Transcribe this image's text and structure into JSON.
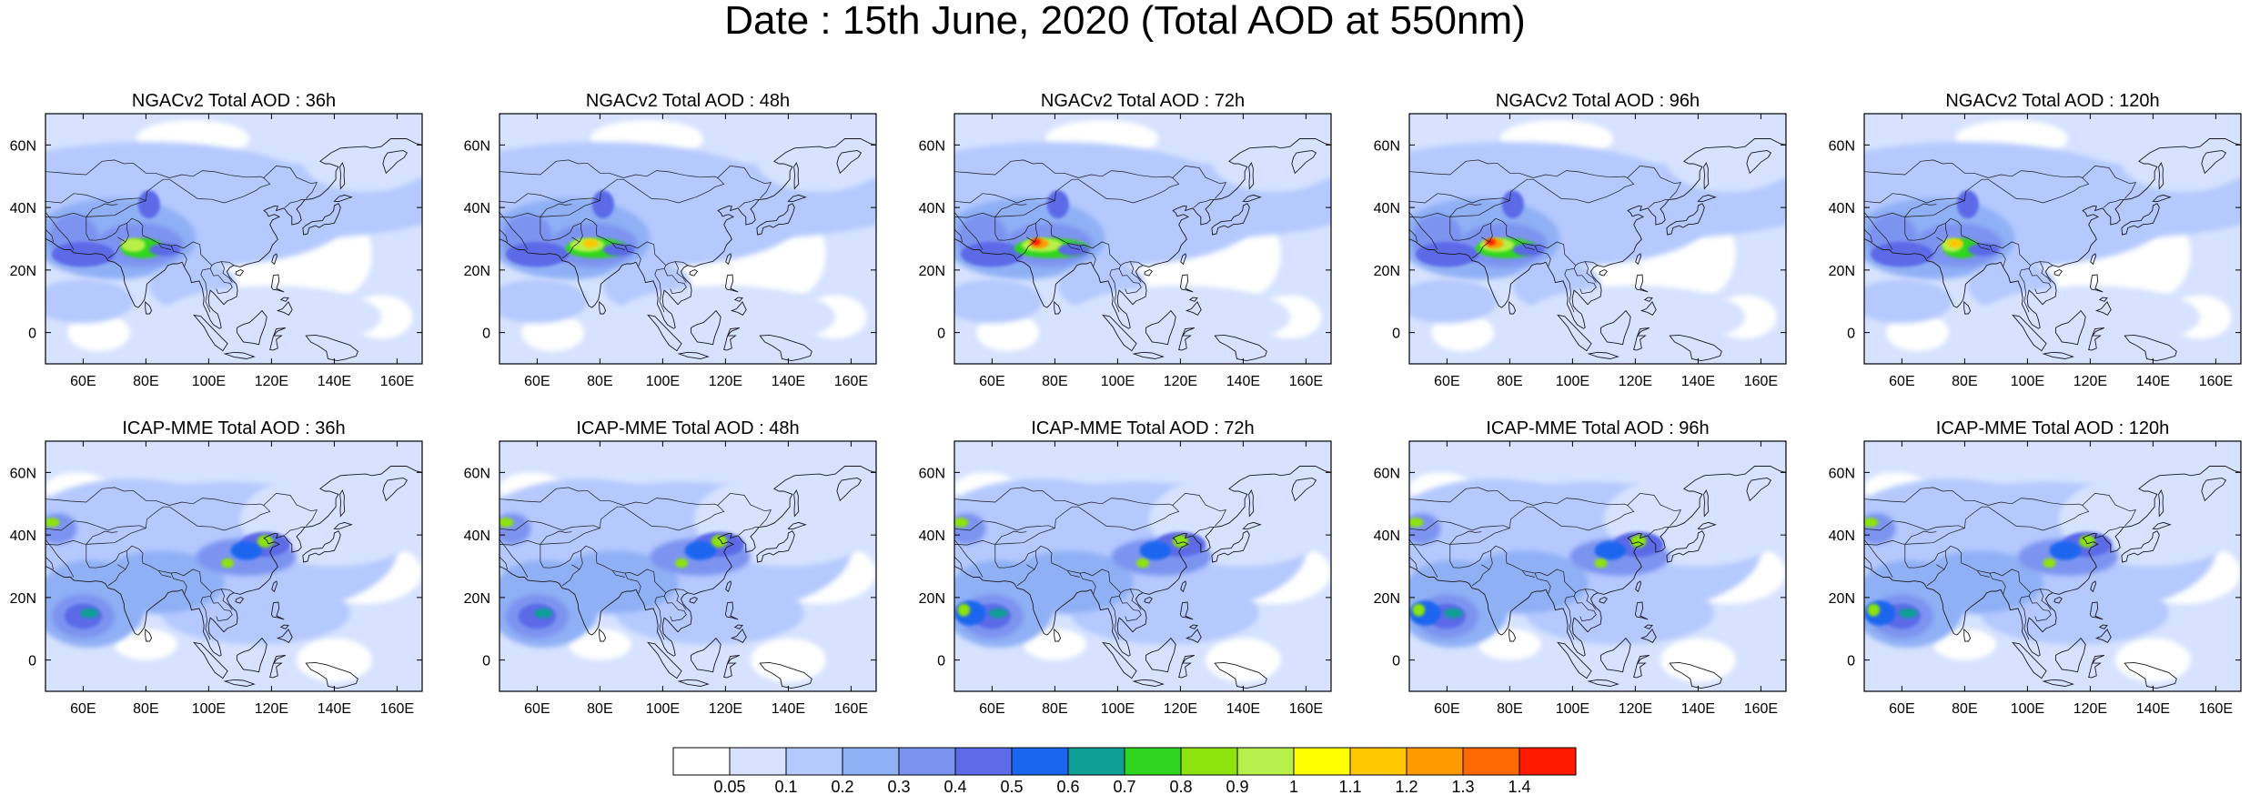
{
  "title": "Date : 15th June, 2020 (Total AOD at 550nm)",
  "rows": [
    {
      "model": "NGACv2",
      "panels": [
        {
          "title": "NGACv2 Total AOD : 36h",
          "lead_hours": 36
        },
        {
          "title": "NGACv2 Total AOD : 48h",
          "lead_hours": 48
        },
        {
          "title": "NGACv2 Total AOD : 72h",
          "lead_hours": 72
        },
        {
          "title": "NGACv2 Total AOD : 96h",
          "lead_hours": 96
        },
        {
          "title": "NGACv2 Total AOD : 120h",
          "lead_hours": 120
        }
      ]
    },
    {
      "model": "ICAP-MME",
      "panels": [
        {
          "title": "ICAP-MME Total AOD : 36h",
          "lead_hours": 36
        },
        {
          "title": "ICAP-MME Total AOD : 48h",
          "lead_hours": 48
        },
        {
          "title": "ICAP-MME Total AOD : 72h",
          "lead_hours": 72
        },
        {
          "title": "ICAP-MME Total AOD : 96h",
          "lead_hours": 96
        },
        {
          "title": "ICAP-MME Total AOD : 120h",
          "lead_hours": 120
        }
      ]
    }
  ],
  "map": {
    "lon_range": [
      48,
      168
    ],
    "lat_range": [
      -10,
      70
    ],
    "x_ticks": [
      {
        "value": 60,
        "label": "60E"
      },
      {
        "value": 80,
        "label": "80E"
      },
      {
        "value": 100,
        "label": "100E"
      },
      {
        "value": 120,
        "label": "120E"
      },
      {
        "value": 140,
        "label": "140E"
      },
      {
        "value": 160,
        "label": "160E"
      }
    ],
    "y_ticks": [
      {
        "value": 0,
        "label": "0"
      },
      {
        "value": 20,
        "label": "20N"
      },
      {
        "value": 40,
        "label": "40N"
      },
      {
        "value": 60,
        "label": "60N"
      }
    ]
  },
  "colorbar": {
    "levels": [
      "0.05",
      "0.1",
      "0.2",
      "0.3",
      "0.4",
      "0.5",
      "0.6",
      "0.7",
      "0.8",
      "0.9",
      "1",
      "1.1",
      "1.2",
      "1.3",
      "1.4"
    ],
    "colors": [
      "#ffffff",
      "#d6e2ff",
      "#b5c9ff",
      "#8fb0f5",
      "#7b93f0",
      "#5c6be8",
      "#1a66ef",
      "#0d9e95",
      "#2fd61f",
      "#8de30d",
      "#b8ef4a",
      "#ffff00",
      "#ffc800",
      "#ff9a00",
      "#ff6a00",
      "#ff1a00"
    ]
  },
  "colors": {
    "coast": "#1a1a1a",
    "frame": "#000000",
    "background": "#ffffff"
  }
}
